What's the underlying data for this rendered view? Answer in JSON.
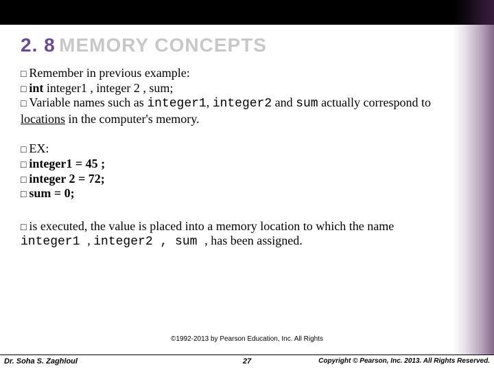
{
  "title": {
    "num": "2. 8",
    "text": "MEMORY CONCEPTS"
  },
  "g1": {
    "l1": "Remember in previous example:",
    "l2a": "int ",
    "l2b": " integer1 , integer 2 , sum;",
    "l3a": "Variable names such as ",
    "l3b": "integer1",
    "l3c": ", ",
    "l3d": "integer2",
    "l3e": " and ",
    "l3f": "sum",
    "l3g": " actually correspond to ",
    "l3h": "locations",
    "l3i": " in the computer's memory."
  },
  "g2": {
    "l1": "EX:",
    "l2": "integer1  = 45 ;",
    "l3": "integer 2 = 72;",
    "l4": "sum = 0;"
  },
  "g3": {
    "a": "is executed, the value is placed into a memory location to which the name ",
    "b": "integer1 ",
    "c": ", ",
    "d": "integer2 ,  sum ",
    "e": ", has been assigned."
  },
  "footer": {
    "mid": "©1992-2013 by Pearson Education, Inc. All Rights",
    "author": "Dr. Soha S. Zaghloul",
    "page": "27",
    "copy": "Copyright © Pearson, Inc. 2013. All Rights Reserved."
  },
  "colors": {
    "accent": "#6a4a95",
    "title_gray": "#c8c8c8",
    "black": "#000000",
    "white": "#ffffff"
  }
}
